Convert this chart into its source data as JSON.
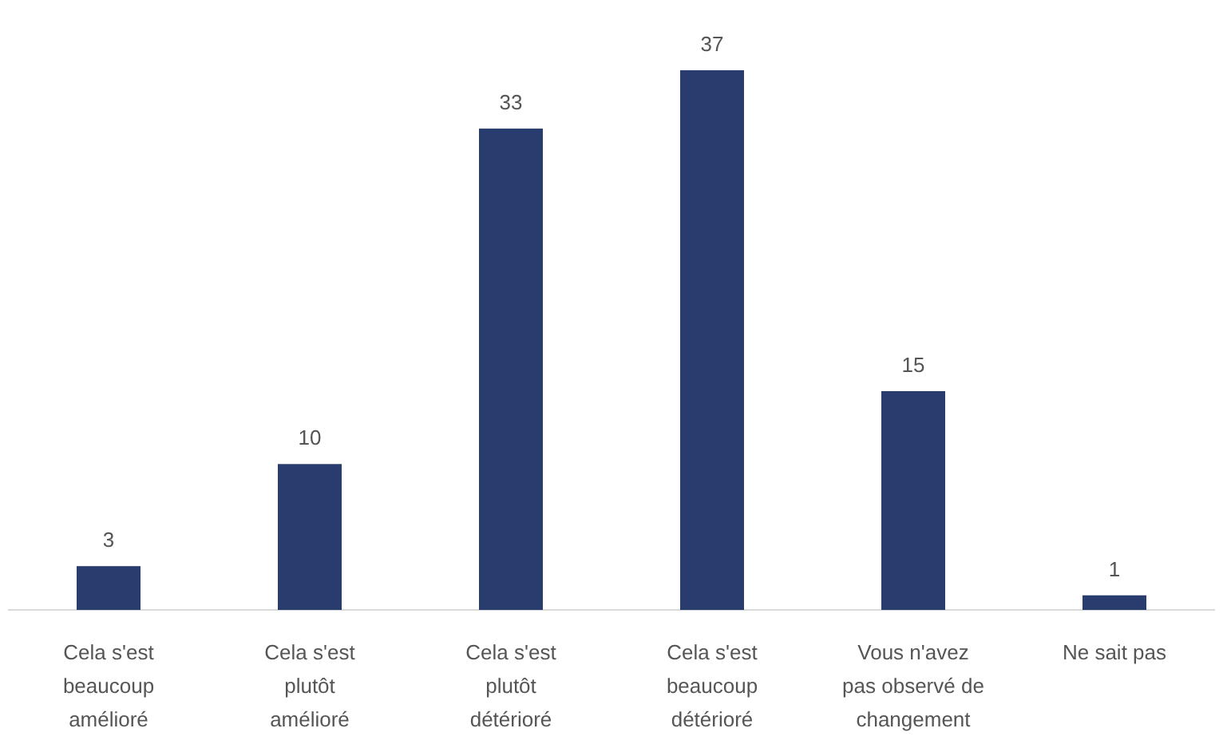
{
  "chart_data": {
    "type": "bar",
    "categories": [
      "Cela s'est beaucoup amélioré",
      "Cela s'est plutôt amélioré",
      "Cela s'est plutôt détérioré",
      "Cela s'est beaucoup détérioré",
      "Vous n'avez pas observé de changement",
      "Ne sait pas"
    ],
    "values": [
      3,
      10,
      33,
      37,
      15,
      1
    ],
    "color": "#283c6e",
    "data_labels": true
  }
}
